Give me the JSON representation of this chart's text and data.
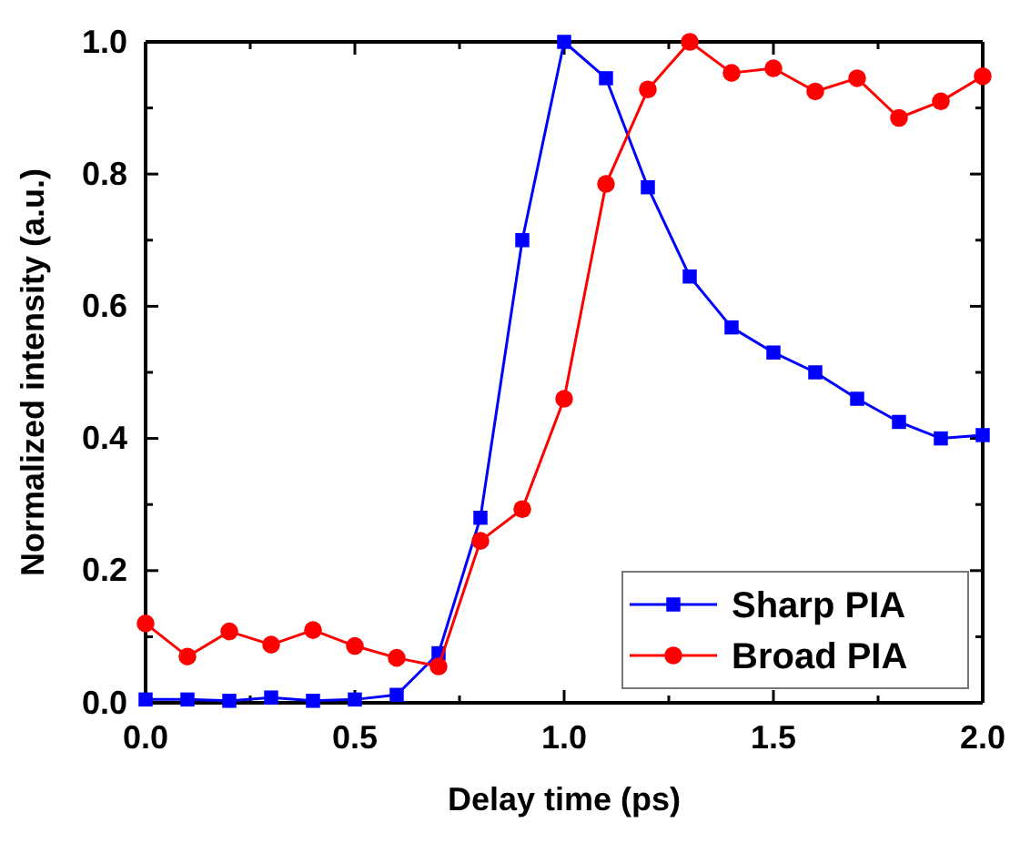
{
  "chart_data": {
    "type": "line",
    "xlabel": "Delay time (ps)",
    "ylabel": "Normalized intensity (a.u.)",
    "x": [
      0,
      0.1,
      0.2,
      0.3,
      0.4,
      0.5,
      0.6,
      0.7,
      0.8,
      0.9,
      1.0,
      1.1,
      1.2,
      1.3,
      1.4,
      1.5,
      1.6,
      1.7,
      1.8,
      1.9,
      2.0
    ],
    "series": [
      {
        "name": "Sharp PIA",
        "color": "#0000ff",
        "marker": "square",
        "values": [
          0.005,
          0.005,
          0.003,
          0.008,
          0.003,
          0.005,
          0.012,
          0.075,
          0.28,
          0.7,
          1.0,
          0.945,
          0.78,
          0.645,
          0.568,
          0.53,
          0.5,
          0.46,
          0.425,
          0.4,
          0.405
        ]
      },
      {
        "name": "Broad PIA",
        "color": "#ff0000",
        "marker": "circle",
        "values": [
          0.12,
          0.07,
          0.108,
          0.088,
          0.11,
          0.086,
          0.068,
          0.055,
          0.245,
          0.293,
          0.46,
          0.785,
          0.928,
          1.0,
          0.953,
          0.96,
          0.925,
          0.945,
          0.885,
          0.91,
          0.948
        ]
      }
    ],
    "xlim": [
      0,
      2
    ],
    "ylim": [
      0,
      1
    ],
    "xticks": [
      {
        "value": 0,
        "label": "0.0"
      },
      {
        "value": 0.25,
        "label": null
      },
      {
        "value": 0.5,
        "label": "0.5"
      },
      {
        "value": 0.75,
        "label": null
      },
      {
        "value": 1,
        "label": "1.0"
      },
      {
        "value": 1.25,
        "label": null
      },
      {
        "value": 1.5,
        "label": "1.5"
      },
      {
        "value": 1.75,
        "label": null
      },
      {
        "value": 2,
        "label": "2.0"
      }
    ],
    "yticks": [
      {
        "value": 0,
        "label": "0.0"
      },
      {
        "value": 0.1,
        "label": null
      },
      {
        "value": 0.2,
        "label": "0.2"
      },
      {
        "value": 0.3,
        "label": null
      },
      {
        "value": 0.4,
        "label": "0.4"
      },
      {
        "value": 0.5,
        "label": null
      },
      {
        "value": 0.6,
        "label": "0.6"
      },
      {
        "value": 0.7,
        "label": null
      },
      {
        "value": 0.8,
        "label": "0.8"
      },
      {
        "value": 0.9,
        "label": null
      },
      {
        "value": 1,
        "label": "1.0"
      }
    ],
    "legend": "bottom right",
    "grid": false,
    "line_style": "solid"
  }
}
